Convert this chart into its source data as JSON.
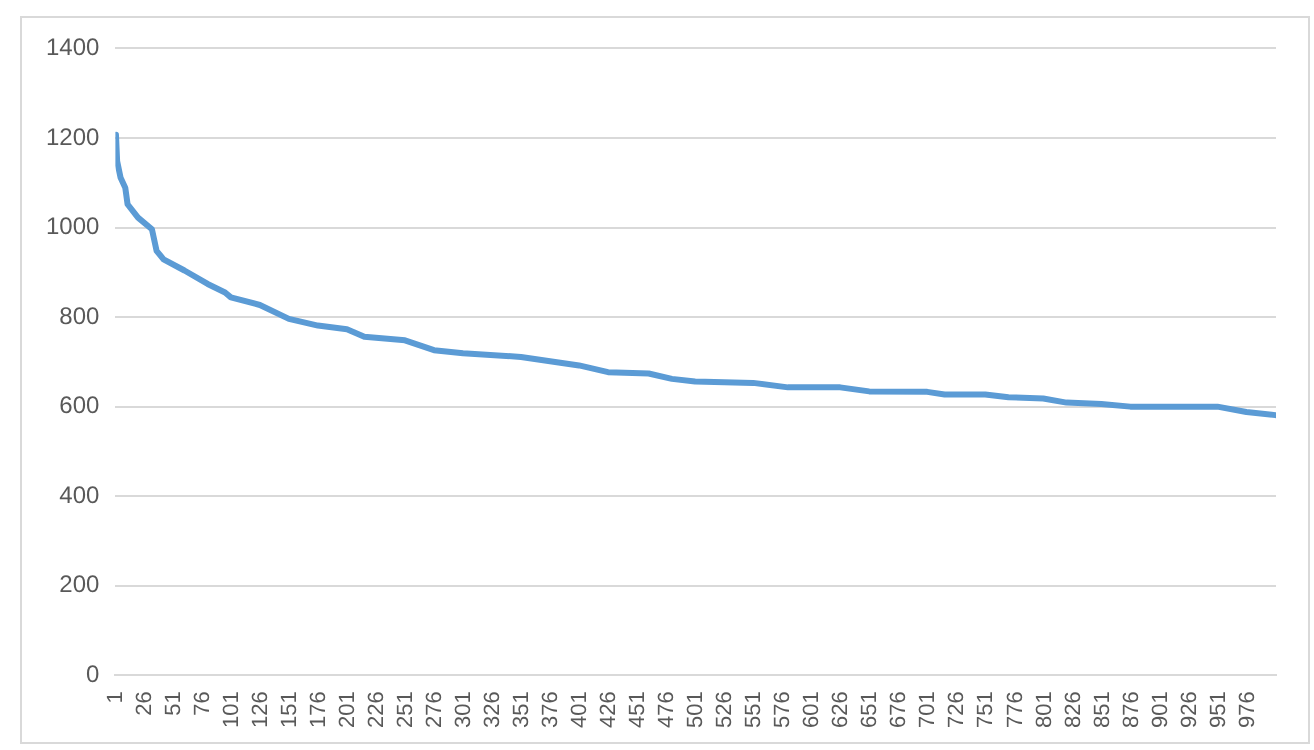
{
  "chart_data": {
    "type": "line",
    "x": [
      1,
      2,
      5,
      9,
      11,
      20,
      32,
      36,
      42,
      60,
      80,
      95,
      100,
      125,
      150,
      175,
      200,
      215,
      250,
      275,
      300,
      350,
      400,
      425,
      460,
      480,
      500,
      550,
      580,
      625,
      650,
      700,
      715,
      750,
      770,
      800,
      820,
      850,
      875,
      950,
      975,
      1000
    ],
    "series": [
      {
        "color": "#5b9bd5",
        "values": [
          1207,
          1148,
          1111,
          1089,
          1052,
          1022,
          996,
          948,
          929,
          904,
          874,
          855,
          844,
          827,
          796,
          781,
          773,
          756,
          748,
          726,
          719,
          711,
          692,
          677,
          674,
          662,
          656,
          653,
          643,
          643,
          634,
          633,
          627,
          627,
          621,
          618,
          609,
          606,
          600,
          600,
          588,
          581
        ]
      }
    ],
    "xlim": [
      0.5,
      1000.5
    ],
    "xticks": [
      1,
      26,
      51,
      76,
      101,
      126,
      151,
      176,
      201,
      226,
      251,
      276,
      301,
      326,
      351,
      376,
      401,
      426,
      451,
      476,
      501,
      526,
      551,
      576,
      601,
      626,
      651,
      676,
      701,
      726,
      751,
      776,
      801,
      826,
      851,
      876,
      901,
      926,
      951,
      976
    ],
    "ylim": [
      0,
      1400
    ],
    "yticks": [
      0,
      200,
      400,
      600,
      800,
      1000,
      1200,
      1400
    ],
    "grid": "y",
    "legend": false,
    "marker": "none",
    "line_style": "solid"
  }
}
